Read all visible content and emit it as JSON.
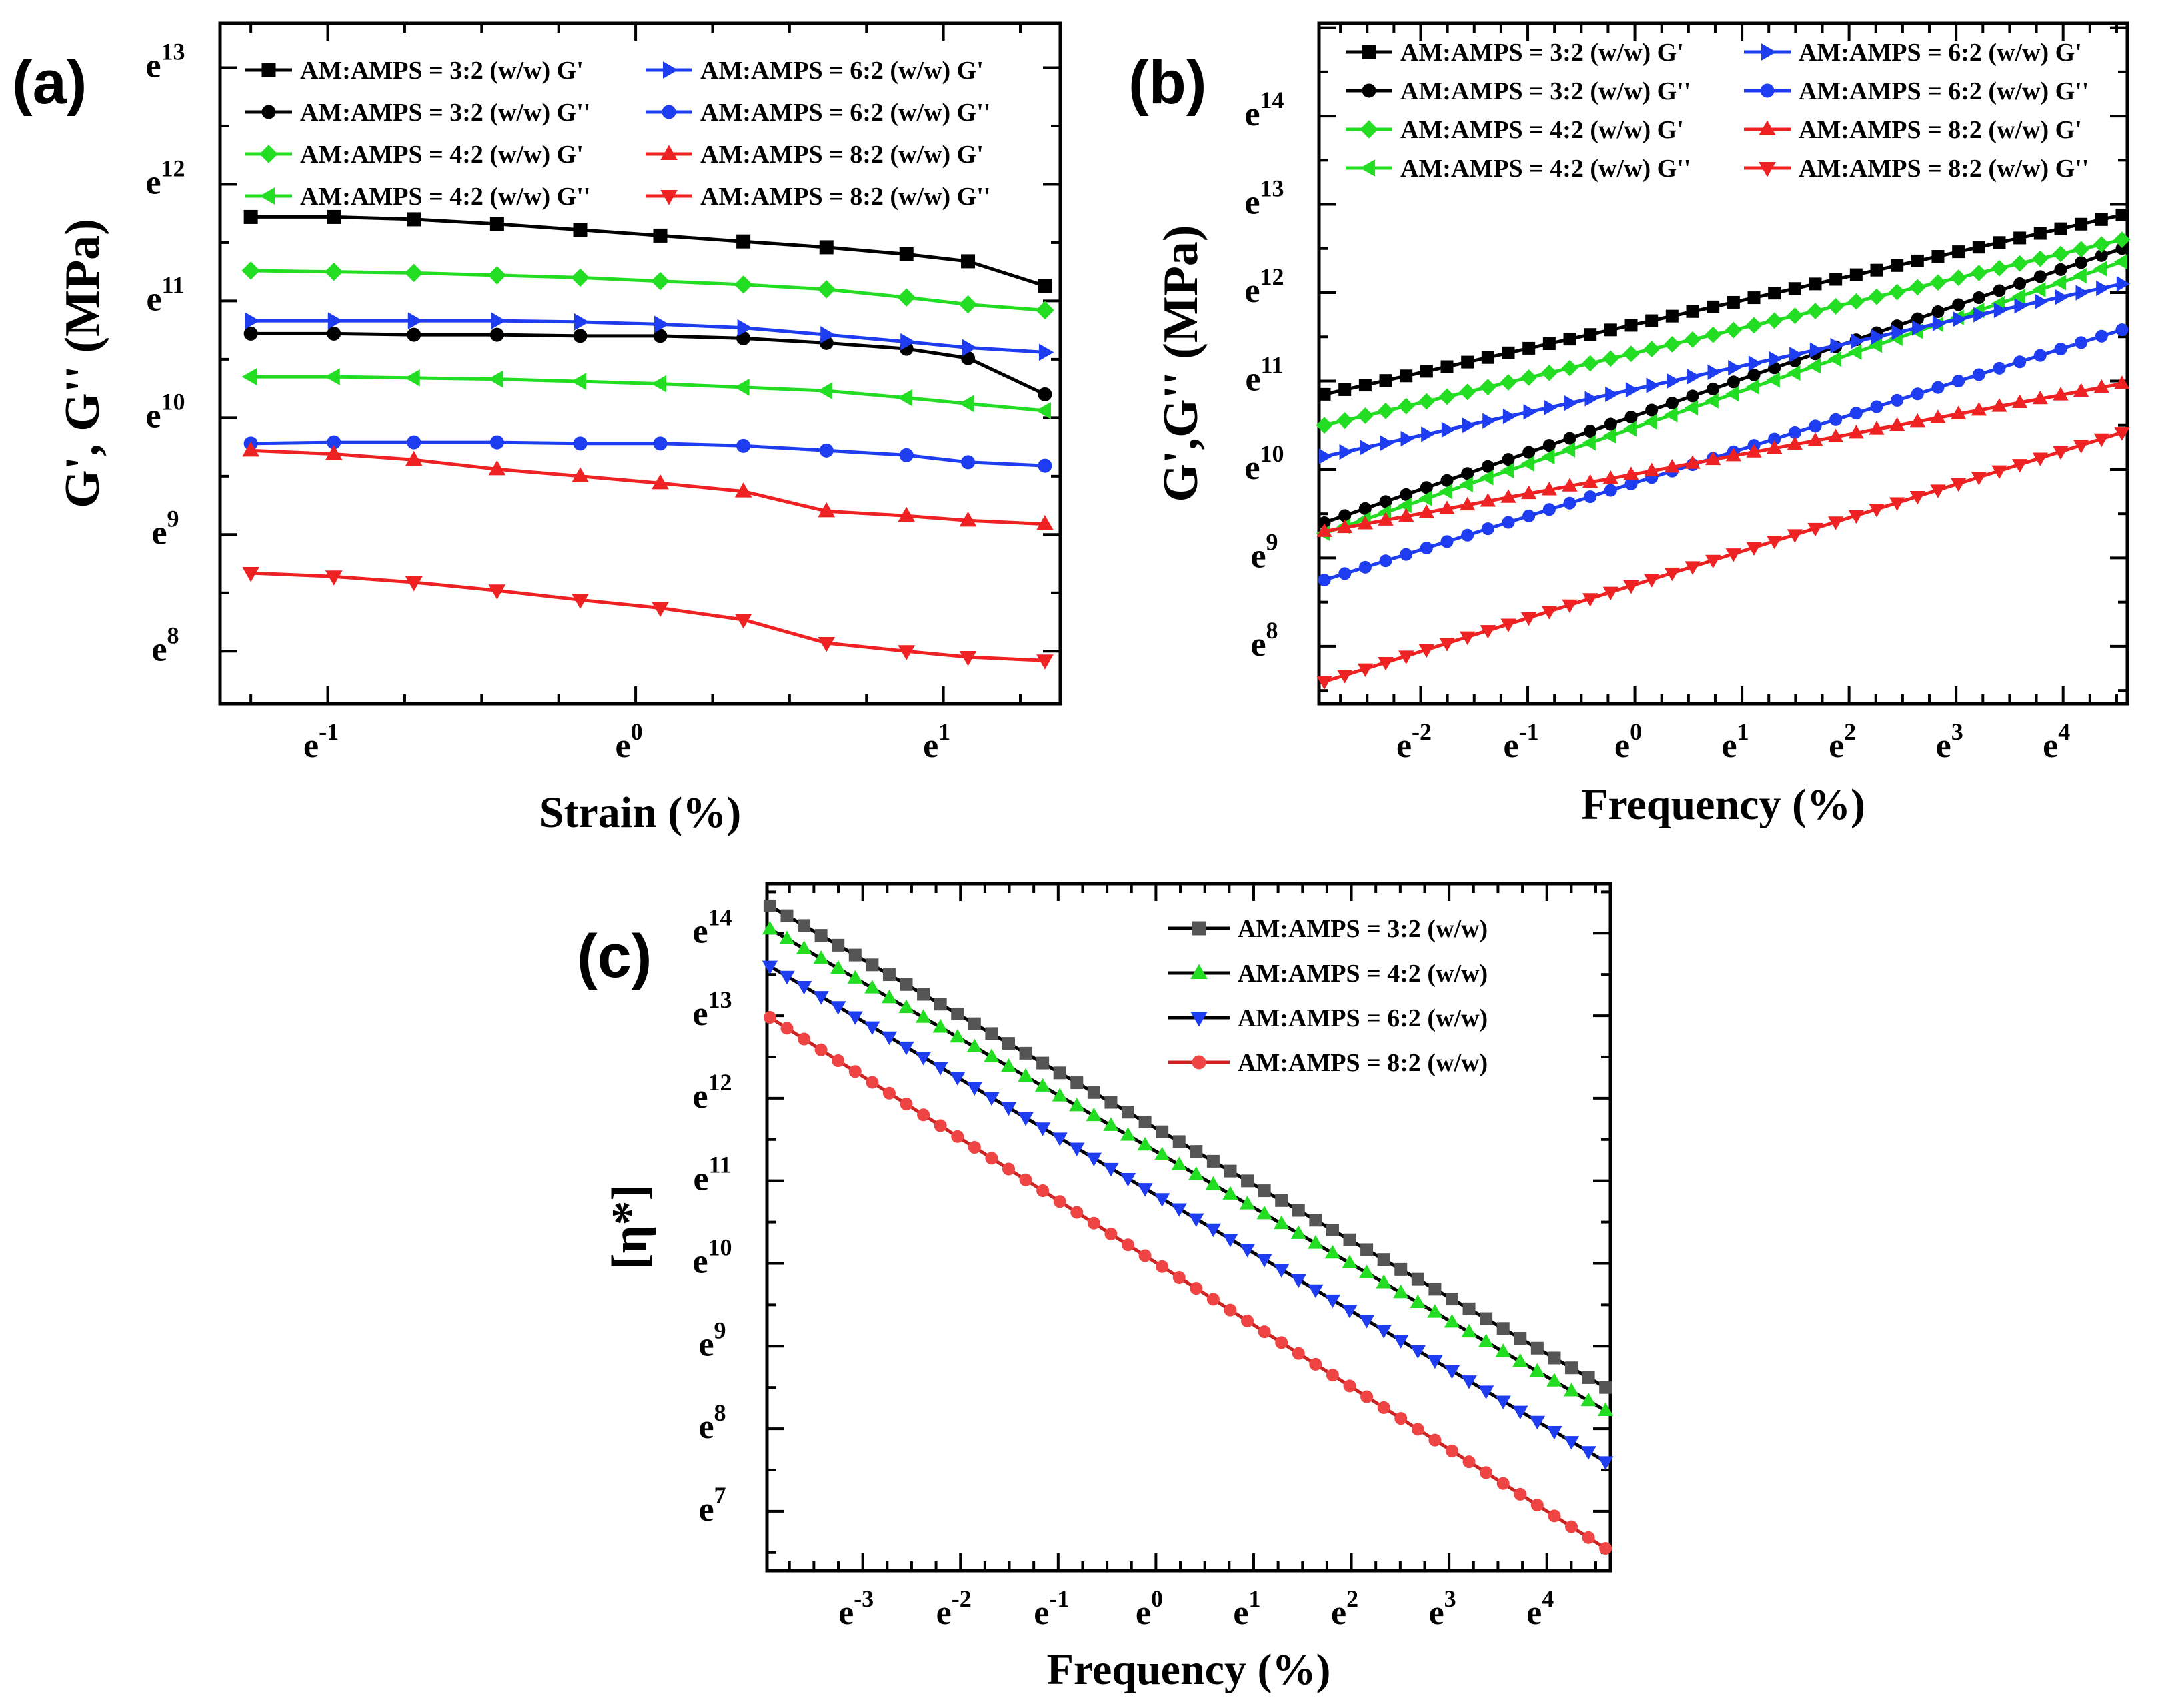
{
  "chart_data": [
    {
      "id": "a",
      "type": "line",
      "panel_label": "(a)",
      "xlabel": "Strain (%)",
      "ylabel": "G', G'' (MPa)",
      "x_ticks": [
        {
          "exp": "-1",
          "value": -1
        },
        {
          "exp": "0",
          "value": 0
        },
        {
          "exp": "1",
          "value": 1
        }
      ],
      "y_ticks": [
        {
          "exp": "8",
          "value": 8
        },
        {
          "exp": "9",
          "value": 9
        },
        {
          "exp": "10",
          "value": 10
        },
        {
          "exp": "11",
          "value": 11
        },
        {
          "exp": "12",
          "value": 12
        },
        {
          "exp": "13",
          "value": 13
        }
      ],
      "xlim": [
        -1.35,
        1.38
      ],
      "ylim": [
        7.55,
        13.38
      ],
      "legend": {
        "columns": 2,
        "position": "top"
      },
      "series": [
        {
          "name": "AM:AMPS = 3:2 (w/w) G'",
          "color": "#000000",
          "marker": "square",
          "x": [
            -1.25,
            -0.98,
            -0.72,
            -0.45,
            -0.18,
            0.08,
            0.35,
            0.62,
            0.88,
            1.08,
            1.33
          ],
          "y": [
            11.72,
            11.72,
            11.7,
            11.66,
            11.61,
            11.56,
            11.51,
            11.46,
            11.4,
            11.34,
            11.13
          ]
        },
        {
          "name": "AM:AMPS = 3:2 (w/w) G''",
          "color": "#000000",
          "marker": "circle",
          "x": [
            -1.25,
            -0.98,
            -0.72,
            -0.45,
            -0.18,
            0.08,
            0.35,
            0.62,
            0.88,
            1.08,
            1.33
          ],
          "y": [
            10.72,
            10.72,
            10.71,
            10.71,
            10.7,
            10.7,
            10.68,
            10.64,
            10.59,
            10.51,
            10.2
          ]
        },
        {
          "name": "AM:AMPS = 4:2 (w/w) G'",
          "color": "#22dd22",
          "marker": "diamond",
          "x": [
            -1.25,
            -0.98,
            -0.72,
            -0.45,
            -0.18,
            0.08,
            0.35,
            0.62,
            0.88,
            1.08,
            1.33
          ],
          "y": [
            11.26,
            11.25,
            11.24,
            11.22,
            11.2,
            11.17,
            11.14,
            11.1,
            11.03,
            10.97,
            10.92
          ]
        },
        {
          "name": "AM:AMPS = 4:2 (w/w) G''",
          "color": "#22dd22",
          "marker": "triangle-left",
          "x": [
            -1.25,
            -0.98,
            -0.72,
            -0.45,
            -0.18,
            0.08,
            0.35,
            0.62,
            0.88,
            1.08,
            1.33
          ],
          "y": [
            10.35,
            10.35,
            10.34,
            10.33,
            10.31,
            10.29,
            10.26,
            10.23,
            10.17,
            10.12,
            10.06
          ]
        },
        {
          "name": "AM:AMPS = 6:2 (w/w) G'",
          "color": "#1e3cf0",
          "marker": "triangle-right",
          "x": [
            -1.25,
            -0.98,
            -0.72,
            -0.45,
            -0.18,
            0.08,
            0.35,
            0.62,
            0.88,
            1.08,
            1.33
          ],
          "y": [
            10.83,
            10.83,
            10.83,
            10.83,
            10.82,
            10.8,
            10.77,
            10.71,
            10.65,
            10.6,
            10.56
          ]
        },
        {
          "name": "AM:AMPS = 6:2 (w/w) G''",
          "color": "#1e3cf0",
          "marker": "circle",
          "x": [
            -1.25,
            -0.98,
            -0.72,
            -0.45,
            -0.18,
            0.08,
            0.35,
            0.62,
            0.88,
            1.08,
            1.33
          ],
          "y": [
            9.78,
            9.79,
            9.79,
            9.79,
            9.78,
            9.78,
            9.76,
            9.72,
            9.68,
            9.62,
            9.59
          ]
        },
        {
          "name": "AM:AMPS = 8:2 (w/w) G'",
          "color": "#ee2222",
          "marker": "triangle-up",
          "x": [
            -1.25,
            -0.98,
            -0.72,
            -0.45,
            -0.18,
            0.08,
            0.35,
            0.62,
            0.88,
            1.08,
            1.33
          ],
          "y": [
            9.72,
            9.69,
            9.64,
            9.56,
            9.5,
            9.44,
            9.37,
            9.2,
            9.16,
            9.12,
            9.09
          ]
        },
        {
          "name": "AM:AMPS = 8:2 (w/w) G''",
          "color": "#ee2222",
          "marker": "triangle-down",
          "x": [
            -1.25,
            -0.98,
            -0.72,
            -0.45,
            -0.18,
            0.08,
            0.35,
            0.62,
            0.88,
            1.08,
            1.33
          ],
          "y": [
            8.67,
            8.64,
            8.59,
            8.52,
            8.44,
            8.37,
            8.27,
            8.07,
            8.0,
            7.95,
            7.92
          ]
        }
      ]
    },
    {
      "id": "b",
      "type": "line",
      "panel_label": "(b)",
      "xlabel": "Frequency (%)",
      "ylabel": "G',G'' (MPa)",
      "x_ticks": [
        {
          "exp": "-2",
          "value": -2
        },
        {
          "exp": "-1",
          "value": -1
        },
        {
          "exp": "0",
          "value": 0
        },
        {
          "exp": "1",
          "value": 1
        },
        {
          "exp": "2",
          "value": 2
        },
        {
          "exp": "3",
          "value": 3
        },
        {
          "exp": "4",
          "value": 4
        }
      ],
      "y_ticks": [
        {
          "exp": "8",
          "value": 8
        },
        {
          "exp": "9",
          "value": 9
        },
        {
          "exp": "10",
          "value": 10
        },
        {
          "exp": "11",
          "value": 11
        },
        {
          "exp": "12",
          "value": 12
        },
        {
          "exp": "13",
          "value": 13
        },
        {
          "exp": "14",
          "value": 14
        }
      ],
      "xlim": [
        -2.95,
        4.6
      ],
      "ylim": [
        7.35,
        15.05
      ],
      "legend": {
        "columns": 2,
        "position": "top"
      },
      "series": [
        {
          "name": "AM:AMPS = 3:2 (w/w) G'",
          "color": "#000000",
          "marker": "square",
          "x_range": [
            -2.9,
            4.55
          ],
          "y_range": [
            10.85,
            12.88
          ],
          "points": 40
        },
        {
          "name": "AM:AMPS = 3:2 (w/w) G''",
          "color": "#000000",
          "marker": "circle",
          "x_range": [
            -2.9,
            4.55
          ],
          "y_range": [
            9.4,
            12.5
          ],
          "points": 40
        },
        {
          "name": "AM:AMPS = 4:2 (w/w) G'",
          "color": "#22dd22",
          "marker": "diamond",
          "x_range": [
            -2.9,
            4.55
          ],
          "y_range": [
            10.5,
            12.6
          ],
          "points": 40
        },
        {
          "name": "AM:AMPS = 4:2 (w/w) G''",
          "color": "#22dd22",
          "marker": "triangle-left",
          "x_range": [
            -2.9,
            4.55
          ],
          "y_range": [
            9.28,
            12.35
          ],
          "points": 40
        },
        {
          "name": "AM:AMPS = 6:2 (w/w) G'",
          "color": "#1e3cf0",
          "marker": "triangle-right",
          "x_range": [
            -2.9,
            4.55
          ],
          "y_range": [
            10.15,
            12.1
          ],
          "points": 40
        },
        {
          "name": "AM:AMPS = 6:2 (w/w) G''",
          "color": "#1e3cf0",
          "marker": "circle",
          "x_range": [
            -2.9,
            4.55
          ],
          "y_range": [
            8.75,
            11.58
          ],
          "points": 40
        },
        {
          "name": "AM:AMPS = 8:2 (w/w) G'",
          "color": "#ee2222",
          "marker": "triangle-up",
          "x_range": [
            -2.9,
            4.55
          ],
          "y_range": [
            9.3,
            10.97
          ],
          "points": 40
        },
        {
          "name": "AM:AMPS = 8:2 (w/w) G''",
          "color": "#ee2222",
          "marker": "triangle-down",
          "x_range": [
            -2.9,
            4.55
          ],
          "y_range": [
            7.6,
            10.42
          ],
          "points": 40
        }
      ]
    },
    {
      "id": "c",
      "type": "line",
      "panel_label": "(c)",
      "xlabel": "Frequency (%)",
      "ylabel": "[η*]",
      "x_ticks": [
        {
          "exp": "-3",
          "value": -3
        },
        {
          "exp": "-2",
          "value": -2
        },
        {
          "exp": "-1",
          "value": -1
        },
        {
          "exp": "0",
          "value": 0
        },
        {
          "exp": "1",
          "value": 1
        },
        {
          "exp": "2",
          "value": 2
        },
        {
          "exp": "3",
          "value": 3
        },
        {
          "exp": "4",
          "value": 4
        }
      ],
      "y_ticks": [
        {
          "exp": "7",
          "value": 7
        },
        {
          "exp": "8",
          "value": 8
        },
        {
          "exp": "9",
          "value": 9
        },
        {
          "exp": "10",
          "value": 10
        },
        {
          "exp": "11",
          "value": 11
        },
        {
          "exp": "12",
          "value": 12
        },
        {
          "exp": "13",
          "value": 13
        },
        {
          "exp": "14",
          "value": 14
        }
      ],
      "xlim": [
        -3.98,
        4.65
      ],
      "ylim": [
        6.28,
        14.6
      ],
      "legend": {
        "columns": 1,
        "position": "top-right"
      },
      "series": [
        {
          "name": "AM:AMPS = 3:2 (w/w)",
          "color": "#555555",
          "line_color": "#000000",
          "marker": "square",
          "x_range": [
            -3.95,
            4.6
          ],
          "y_range": [
            14.33,
            8.5
          ],
          "points": 50
        },
        {
          "name": "AM:AMPS = 4:2 (w/w)",
          "color": "#22dd22",
          "line_color": "#000000",
          "marker": "triangle-up",
          "x_range": [
            -3.95,
            4.6
          ],
          "y_range": [
            14.05,
            8.22
          ],
          "points": 50
        },
        {
          "name": "AM:AMPS = 6:2 (w/w)",
          "color": "#1e3cf0",
          "line_color": "#000000",
          "marker": "triangle-down",
          "x_range": [
            -3.95,
            4.6
          ],
          "y_range": [
            13.6,
            7.6
          ],
          "points": 50
        },
        {
          "name": "AM:AMPS = 8:2 (w/w)",
          "color": "#ee4444",
          "line_color": "#cc2222",
          "marker": "circle",
          "x_range": [
            -3.95,
            4.6
          ],
          "y_range": [
            12.98,
            6.55
          ],
          "points": 50
        }
      ]
    }
  ]
}
